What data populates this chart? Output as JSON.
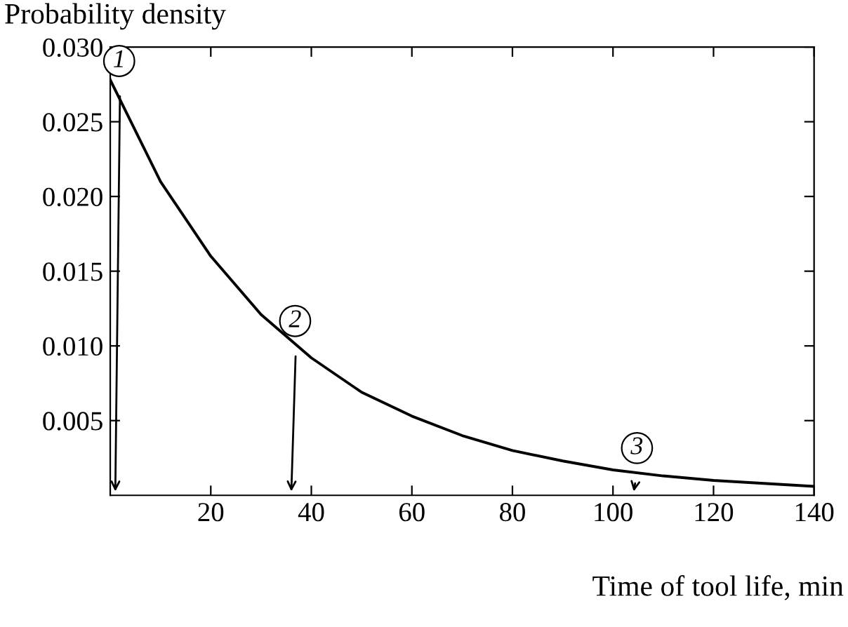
{
  "chart_data": {
    "type": "line",
    "xlabel": "Time of tool life, min",
    "ylabel": "Probability density",
    "x": [
      0,
      10,
      20,
      30,
      40,
      50,
      60,
      70,
      80,
      90,
      100,
      110,
      120,
      130,
      140
    ],
    "series": [
      {
        "color": "#000000",
        "values": [
          0.0278,
          0.021,
          0.016,
          0.0121,
          0.0092,
          0.0069,
          0.0053,
          0.004,
          0.003,
          0.0023,
          0.0017,
          0.0013,
          0.001,
          0.0008,
          0.0006
        ]
      }
    ],
    "xlim": [
      0,
      140
    ],
    "ylim": [
      0,
      0.03
    ],
    "xticks": [
      20,
      40,
      60,
      80,
      100,
      120,
      140
    ],
    "yticks": [
      {
        "value": 0.005,
        "label": "0.005"
      },
      {
        "value": 0.01,
        "label": "0.010"
      },
      {
        "value": 0.015,
        "label": "0.015"
      },
      {
        "value": 0.02,
        "label": "0.020"
      },
      {
        "value": 0.025,
        "label": "0.025"
      },
      {
        "value": 0.03,
        "label": "0.030"
      }
    ],
    "grid": false,
    "legend": false,
    "marker": "none",
    "line_style": "solid",
    "annotations": [
      {
        "text": "1",
        "x": 1,
        "y": 0.0275
      },
      {
        "text": "2",
        "x": 36,
        "y": 0.0101
      },
      {
        "text": "3",
        "x": 104,
        "y": 0.0016
      }
    ]
  }
}
